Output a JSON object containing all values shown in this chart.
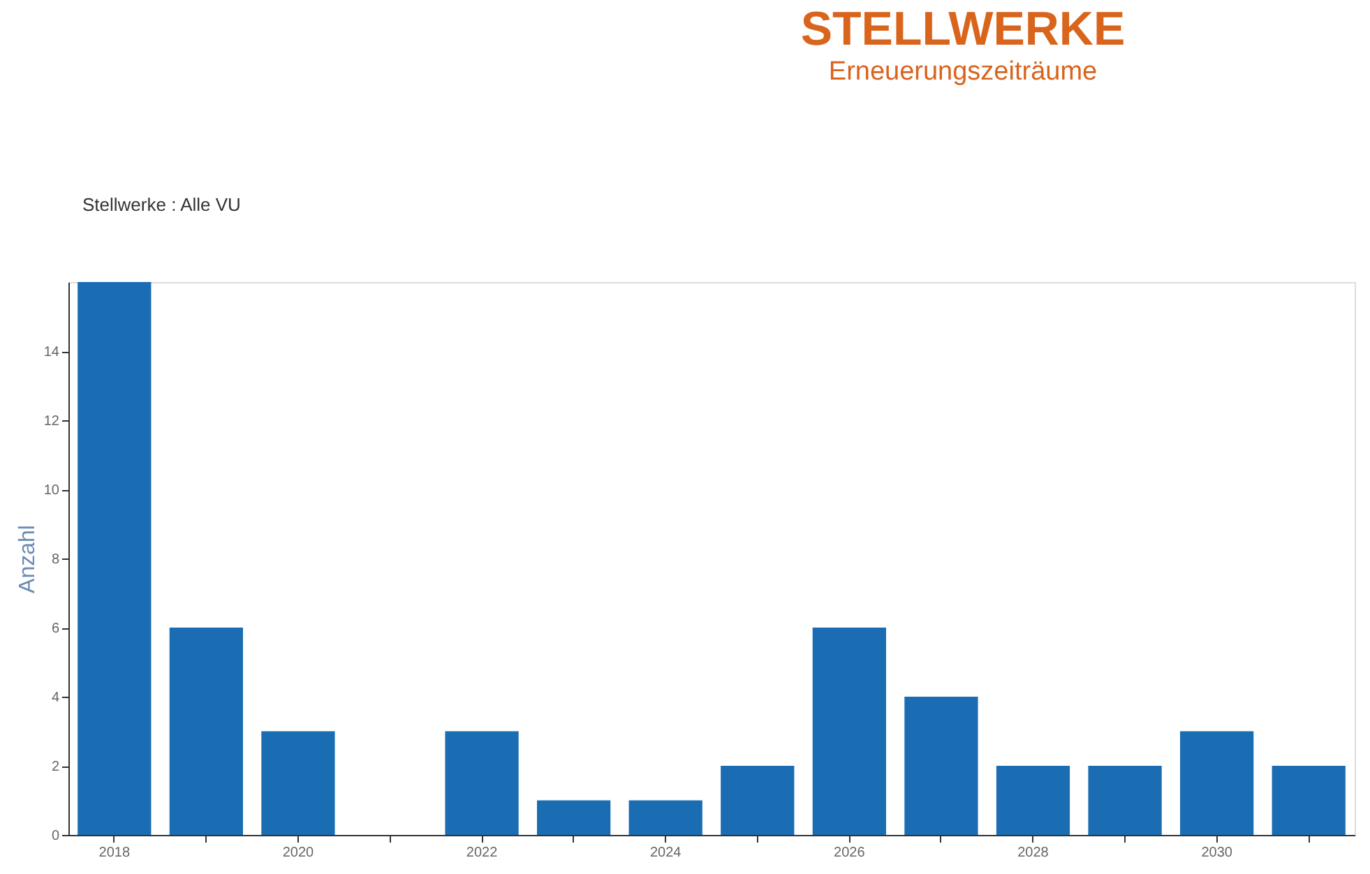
{
  "chart_data": {
    "type": "bar",
    "title": "STELLWERKE",
    "subtitle": "Erneuerungszeiträume",
    "ylabel": "Anzahl",
    "annotations": [
      "Stellwerke : Alle VU"
    ],
    "categories": [
      "2018",
      null,
      "2020",
      null,
      "2022",
      null,
      "2024",
      null,
      "2026",
      null,
      "2028",
      null,
      "2030",
      null
    ],
    "values": [
      16,
      6,
      3,
      0,
      3,
      1,
      1,
      2,
      6,
      4,
      2,
      2,
      3,
      2
    ],
    "color": "#1a6db3",
    "ylim": [
      0,
      16
    ],
    "yticks": [
      0,
      2,
      4,
      6,
      8,
      10,
      12,
      14
    ],
    "grid": false
  }
}
